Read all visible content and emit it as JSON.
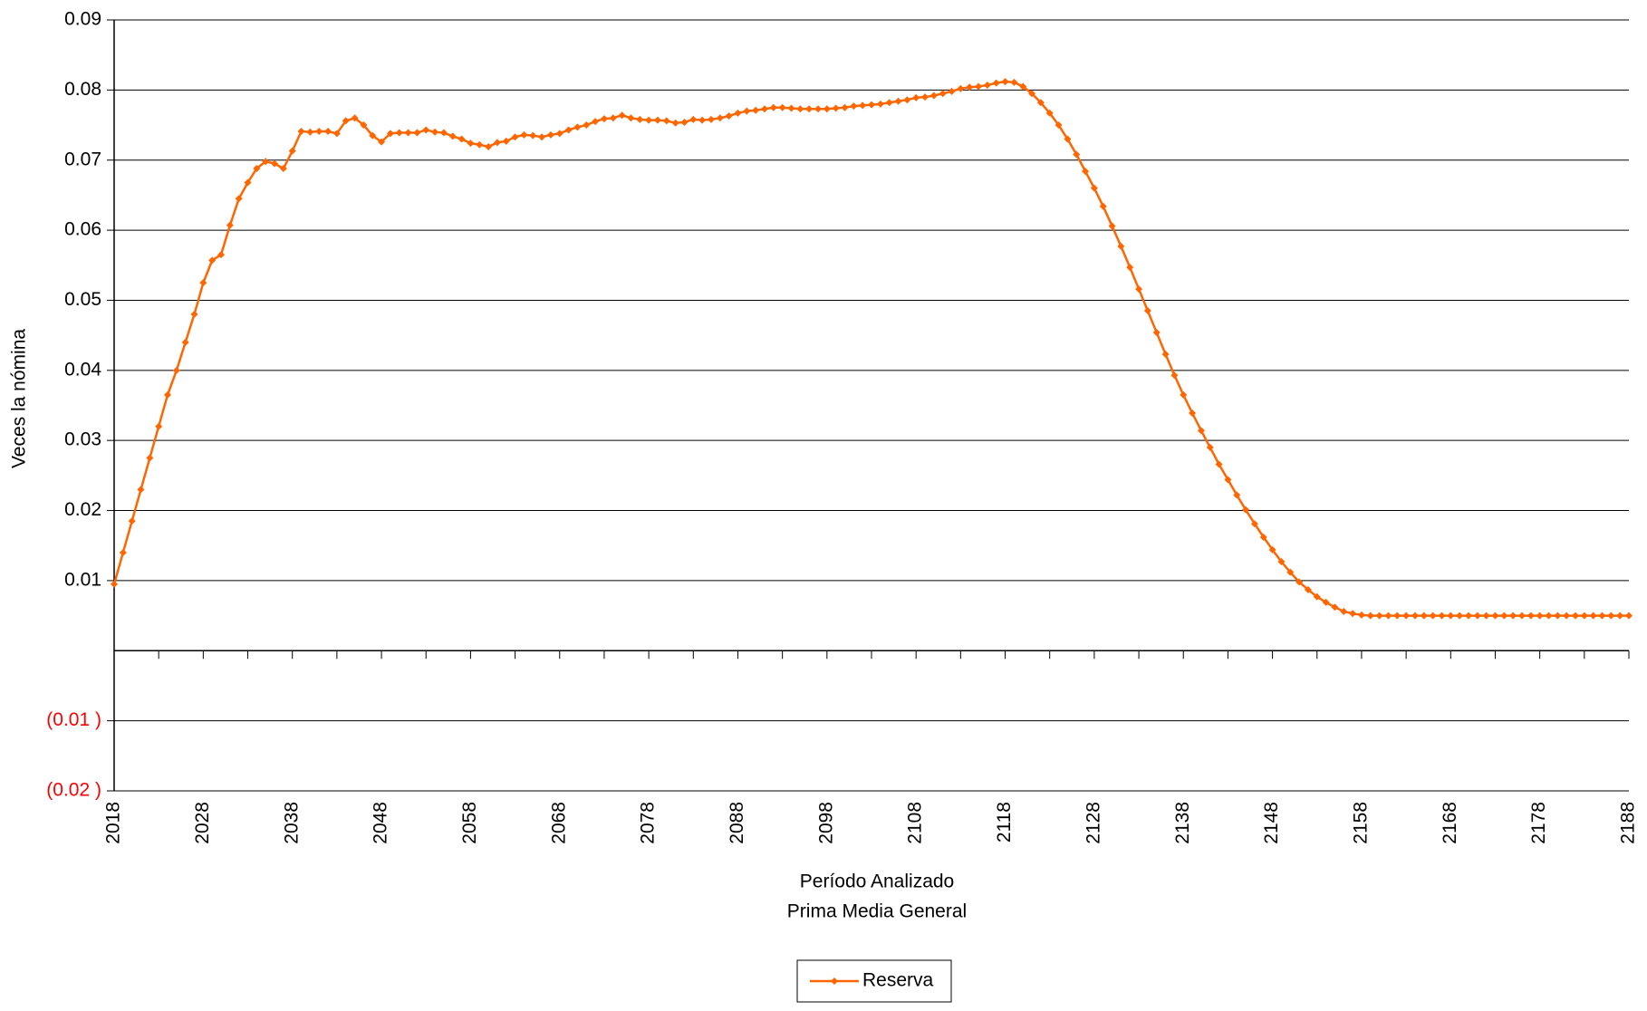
{
  "chart_data": {
    "type": "line",
    "y_label": "Veces la nómina",
    "x_label": "Período Analizado",
    "subtitle": "Prima Media General",
    "x": [
      2018,
      2019,
      2020,
      2021,
      2022,
      2023,
      2024,
      2025,
      2026,
      2027,
      2028,
      2029,
      2030,
      2031,
      2032,
      2033,
      2034,
      2035,
      2036,
      2037,
      2038,
      2039,
      2040,
      2041,
      2042,
      2043,
      2044,
      2045,
      2046,
      2047,
      2048,
      2049,
      2050,
      2051,
      2052,
      2053,
      2054,
      2055,
      2056,
      2057,
      2058,
      2059,
      2060,
      2061,
      2062,
      2063,
      2064,
      2065,
      2066,
      2067,
      2068,
      2069,
      2070,
      2071,
      2072,
      2073,
      2074,
      2075,
      2076,
      2077,
      2078,
      2079,
      2080,
      2081,
      2082,
      2083,
      2084,
      2085,
      2086,
      2087,
      2088,
      2089,
      2090,
      2091,
      2092,
      2093,
      2094,
      2095,
      2096,
      2097,
      2098,
      2099,
      2100,
      2101,
      2102,
      2103,
      2104,
      2105,
      2106,
      2107,
      2108,
      2109,
      2110,
      2111,
      2112,
      2113,
      2114,
      2115,
      2116,
      2117,
      2118,
      2119,
      2120,
      2121,
      2122,
      2123,
      2124,
      2125,
      2126,
      2127,
      2128,
      2129,
      2130,
      2131,
      2132,
      2133,
      2134,
      2135,
      2136,
      2137,
      2138,
      2139,
      2140,
      2141,
      2142,
      2143,
      2144,
      2145,
      2146,
      2147,
      2148,
      2149,
      2150,
      2151,
      2152,
      2153,
      2154,
      2155,
      2156,
      2157,
      2158,
      2159,
      2160,
      2161,
      2162,
      2163,
      2164,
      2165,
      2166,
      2167,
      2168,
      2169,
      2170,
      2171,
      2172,
      2173,
      2174,
      2175,
      2176,
      2177,
      2178,
      2179,
      2180,
      2181,
      2182,
      2183,
      2184,
      2185,
      2186,
      2187,
      2188
    ],
    "series": [
      {
        "name": "Reserva",
        "color": "#ff6600",
        "values": [
          0.0095,
          0.014,
          0.0185,
          0.023,
          0.0275,
          0.032,
          0.0365,
          0.04,
          0.044,
          0.048,
          0.0525,
          0.0557,
          0.0565,
          0.0607,
          0.0645,
          0.0668,
          0.0688,
          0.0698,
          0.0695,
          0.0688,
          0.0713,
          0.0741,
          0.074,
          0.0741,
          0.0741,
          0.0738,
          0.0756,
          0.076,
          0.075,
          0.0735,
          0.0726,
          0.0738,
          0.0739,
          0.0739,
          0.0739,
          0.0743,
          0.074,
          0.0739,
          0.0734,
          0.073,
          0.0724,
          0.0722,
          0.0719,
          0.0725,
          0.0727,
          0.0733,
          0.0736,
          0.0735,
          0.0733,
          0.0736,
          0.0738,
          0.0743,
          0.0747,
          0.075,
          0.0755,
          0.0759,
          0.076,
          0.0764,
          0.076,
          0.0758,
          0.0757,
          0.0757,
          0.0756,
          0.0753,
          0.0754,
          0.0758,
          0.0757,
          0.0758,
          0.076,
          0.0763,
          0.0767,
          0.077,
          0.0771,
          0.0773,
          0.0775,
          0.0775,
          0.0774,
          0.0773,
          0.0773,
          0.0773,
          0.0773,
          0.0774,
          0.0775,
          0.0777,
          0.0778,
          0.0779,
          0.078,
          0.0782,
          0.0784,
          0.0786,
          0.0789,
          0.079,
          0.0792,
          0.0795,
          0.0798,
          0.0802,
          0.0804,
          0.0805,
          0.0807,
          0.081,
          0.0812,
          0.0811,
          0.0805,
          0.0795,
          0.0782,
          0.0767,
          0.075,
          0.073,
          0.0708,
          0.0684,
          0.066,
          0.0634,
          0.0606,
          0.0577,
          0.0547,
          0.0516,
          0.0485,
          0.0454,
          0.0423,
          0.0393,
          0.0365,
          0.0339,
          0.0314,
          0.029,
          0.0266,
          0.0244,
          0.0222,
          0.0201,
          0.0181,
          0.0162,
          0.0144,
          0.0127,
          0.0112,
          0.0098,
          0.0087,
          0.0077,
          0.0069,
          0.0062,
          0.0056,
          0.0053,
          0.0051,
          0.005,
          0.005,
          0.005,
          0.005,
          0.005,
          0.005,
          0.005,
          0.005,
          0.005,
          0.005,
          0.005,
          0.005,
          0.005,
          0.005,
          0.005,
          0.005,
          0.005,
          0.005,
          0.005,
          0.005,
          0.005,
          0.005,
          0.005,
          0.005,
          0.005,
          0.005,
          0.005,
          0.005,
          0.005,
          0.005
        ]
      }
    ],
    "xlim": [
      2018,
      2188
    ],
    "xticks": [
      2018,
      2028,
      2038,
      2048,
      2058,
      2068,
      2078,
      2088,
      2098,
      2108,
      2118,
      2128,
      2138,
      2148,
      2158,
      2168,
      2178,
      2188
    ],
    "xticks_minor": [
      2023,
      2033,
      2043,
      2053,
      2063,
      2073,
      2083,
      2093,
      2103,
      2113,
      2123,
      2133,
      2143,
      2153,
      2163,
      2173,
      2183
    ],
    "ylim": [
      -0.02,
      0.09
    ],
    "yticks": [
      {
        "value": -0.02,
        "label": "(0.02 )"
      },
      {
        "value": -0.01,
        "label": "(0.01 )"
      },
      0.01,
      0.02,
      0.03,
      0.04,
      0.05,
      0.06,
      0.07,
      0.08,
      0.09
    ],
    "negative_tick_color": "#ff0000",
    "grid": true,
    "legend": "bottom"
  }
}
